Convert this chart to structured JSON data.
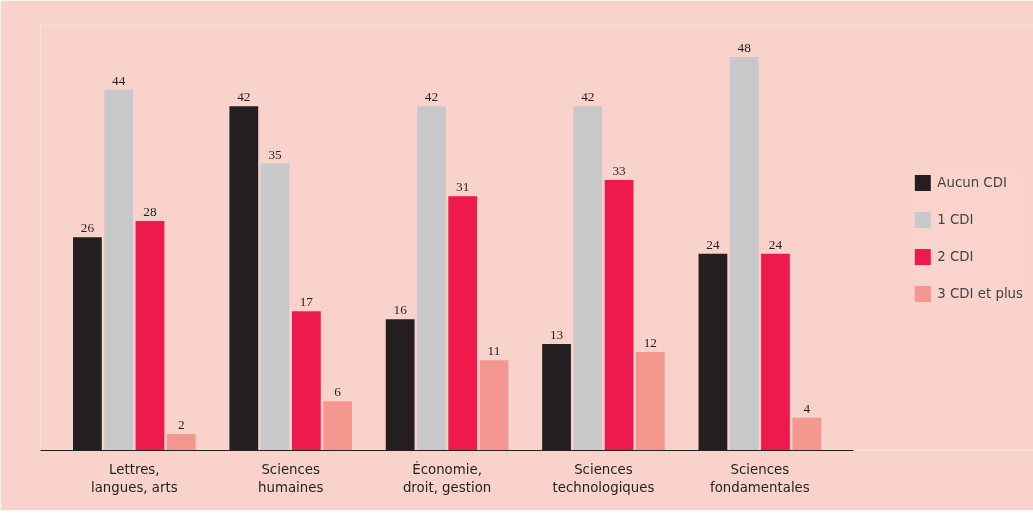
{
  "chart_data": {
    "type": "bar",
    "categories": [
      "Lettres,\nlangues, arts",
      "Sciences\nhumaines",
      "Économie,\ndroit, gestion",
      "Sciences\ntechnologiques",
      "Sciences\nfondamentales"
    ],
    "series": [
      {
        "name": "Aucun CDI",
        "color": "#231f20",
        "values": [
          26,
          42,
          16,
          13,
          24
        ]
      },
      {
        "name": "1 CDI",
        "color": "#c8c8ca",
        "values": [
          44,
          35,
          42,
          42,
          48
        ]
      },
      {
        "name": "2 CDI",
        "color": "#ee1a4e",
        "values": [
          28,
          17,
          31,
          33,
          24
        ]
      },
      {
        "name": "3 CDI et plus",
        "color": "#f4978e",
        "values": [
          2,
          6,
          11,
          12,
          4
        ]
      }
    ],
    "data_labels": true,
    "legend": "right",
    "grid": false
  }
}
